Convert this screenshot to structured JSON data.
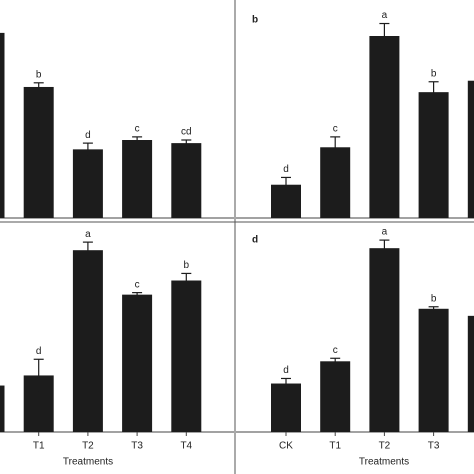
{
  "chart_data": [
    {
      "type": "bar",
      "ylim": [
        0,
        100
      ],
      "color": "#1c1c1c",
      "values": [
        89,
        63,
        33,
        37.5,
        36
      ],
      "errors": [
        2,
        2,
        3,
        1.5,
        1.5
      ],
      "value_labels": [
        null,
        "b",
        "d",
        "c",
        "cd"
      ]
    },
    {
      "type": "bar",
      "title": "b",
      "ylim": [
        0,
        100
      ],
      "color": "#1c1c1c",
      "values": [
        16,
        34,
        87.5,
        60.5,
        66
      ],
      "errors": [
        3.5,
        5,
        6,
        5,
        3
      ],
      "value_labels": [
        "d",
        "c",
        "a",
        "b",
        null
      ]
    },
    {
      "type": "bar",
      "x_label": "Treatments",
      "ylim": [
        0,
        100
      ],
      "color": "#1c1c1c",
      "categories": [
        null,
        "T1",
        "T2",
        "T3",
        "T4"
      ],
      "values": [
        23,
        28,
        90,
        68,
        75
      ],
      "errors": [
        2,
        8,
        4,
        1,
        3.5
      ],
      "value_labels": [
        null,
        "d",
        "a",
        "c",
        "b"
      ]
    },
    {
      "type": "bar",
      "title": "d",
      "x_label": "Treatments",
      "ylim": [
        0,
        100
      ],
      "color": "#1c1c1c",
      "categories": [
        "CK",
        "T1",
        "T2",
        "T3",
        null
      ],
      "values": [
        24,
        35,
        91,
        61,
        57.5
      ],
      "errors": [
        2.5,
        1.5,
        4,
        1,
        2
      ],
      "value_labels": [
        "d",
        "c",
        "a",
        "b",
        null
      ]
    }
  ]
}
